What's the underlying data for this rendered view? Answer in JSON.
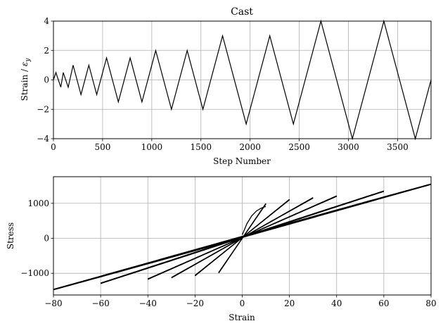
{
  "chart_data": [
    {
      "type": "line",
      "title": "Cast",
      "xlabel": "Step Number",
      "ylabel": "Strain / ε_y",
      "xlim": [
        0,
        3840
      ],
      "ylim": [
        -4,
        4
      ],
      "xticks": [
        0,
        500,
        1000,
        1500,
        2000,
        2500,
        3000,
        3500
      ],
      "yticks": [
        -4,
        -2,
        0,
        2,
        4
      ],
      "xtick_labels": [
        "0",
        "500",
        "1000",
        "1500",
        "2000",
        "2500",
        "3000",
        "3500"
      ],
      "ytick_labels": [
        "−4",
        "−2",
        "0",
        "2",
        "4"
      ],
      "grid": true,
      "color": "#000000",
      "series": [
        {
          "x": [
            0,
            25,
            75,
            100,
            150,
            200,
            280,
            360,
            440,
            540,
            660,
            780,
            900,
            1040,
            1200,
            1360,
            1520,
            1720,
            1960,
            2200,
            2440,
            2720,
            3040,
            3360,
            3680,
            3840
          ],
          "y": [
            0,
            0.5,
            -0.5,
            0.5,
            -0.5,
            1.0,
            -1.0,
            1.0,
            -1.0,
            1.5,
            -1.5,
            1.5,
            -1.5,
            2.0,
            -2.0,
            2.0,
            -2.0,
            3.0,
            -3.0,
            3.0,
            -3.0,
            4.0,
            -4.0,
            4.0,
            -4.0,
            0
          ]
        }
      ]
    },
    {
      "type": "line",
      "title": "",
      "xlabel": "Strain",
      "ylabel": "Stress",
      "xlim": [
        -80,
        80
      ],
      "ylim": [
        -1620,
        1760
      ],
      "xticks": [
        -80,
        -60,
        -40,
        -20,
        0,
        20,
        40,
        60,
        80
      ],
      "yticks": [
        -1000,
        0,
        1000
      ],
      "xtick_labels": [
        "−80",
        "−60",
        "−40",
        "−20",
        "0",
        "20",
        "40",
        "60",
        "80"
      ],
      "ytick_labels": [
        "−1000",
        "0",
        "1000"
      ],
      "grid": true,
      "color": "#000000",
      "hysteresis": {
        "initial_load": [
          [
            0,
            100
          ],
          [
            2,
            420
          ],
          [
            4,
            640
          ],
          [
            6,
            780
          ],
          [
            8,
            860
          ],
          [
            10,
            910
          ]
        ],
        "peaks_positive": [
          10,
          20,
          30,
          40,
          60,
          80
        ],
        "peaks_negative": [
          -10,
          -20,
          -30,
          -40,
          -60,
          -80
        ],
        "tip_stress_positive": [
          980,
          1100,
          1150,
          1200,
          1340,
          1540
        ],
        "tip_stress_negative": [
          -980,
          -1060,
          -1120,
          -1160,
          -1280,
          -1460
        ]
      }
    }
  ]
}
